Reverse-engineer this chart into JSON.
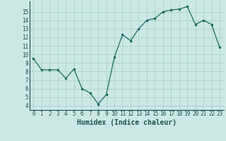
{
  "x": [
    0,
    1,
    2,
    3,
    4,
    5,
    6,
    7,
    8,
    9,
    10,
    11,
    12,
    13,
    14,
    15,
    16,
    17,
    18,
    19,
    20,
    21,
    22,
    23
  ],
  "y": [
    9.5,
    8.2,
    8.2,
    8.2,
    7.2,
    8.3,
    6.0,
    5.5,
    4.2,
    5.3,
    9.7,
    12.3,
    11.6,
    13.0,
    14.0,
    14.2,
    15.0,
    15.2,
    15.3,
    15.6,
    13.5,
    14.0,
    13.5,
    10.8
  ],
  "title": "",
  "xlabel": "Humidex (Indice chaleur)",
  "ylabel": "",
  "xlim": [
    -0.5,
    23.5
  ],
  "ylim": [
    3.5,
    16.2
  ],
  "xticks": [
    0,
    1,
    2,
    3,
    4,
    5,
    6,
    7,
    8,
    9,
    10,
    11,
    12,
    13,
    14,
    15,
    16,
    17,
    18,
    19,
    20,
    21,
    22,
    23
  ],
  "yticks": [
    4,
    5,
    6,
    7,
    8,
    9,
    10,
    11,
    12,
    13,
    14,
    15
  ],
  "line_color": "#1a6b5a",
  "marker_color": "#1a6b5a",
  "bg_color": "#cce8e4",
  "grid_color": "#aacfca",
  "tick_label_color": "#1a5050",
  "xlabel_color": "#1a5050",
  "tick_fontsize": 5.5,
  "xlabel_fontsize": 7.0
}
